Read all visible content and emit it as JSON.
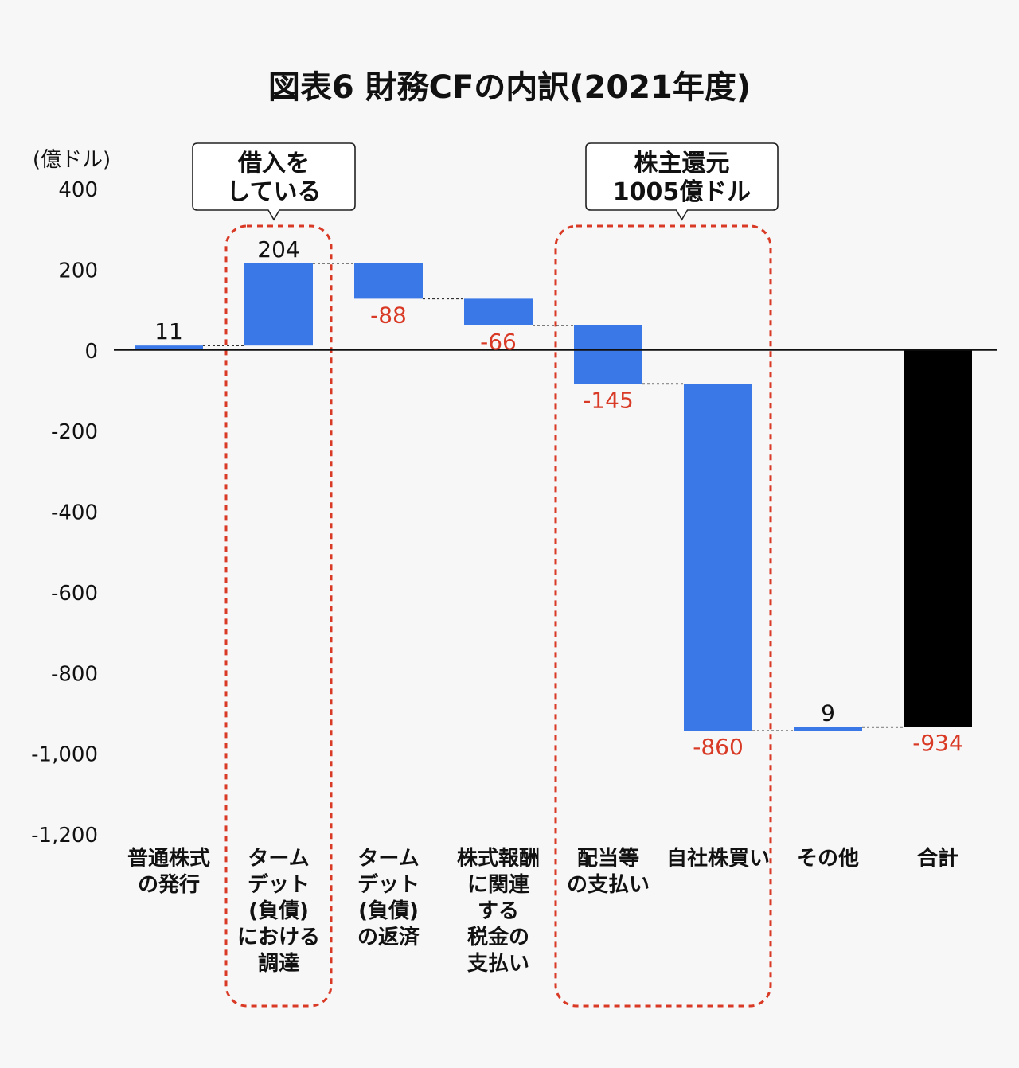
{
  "colors": {
    "background": "#f7f7f7",
    "bar_blue": "#3b78e7",
    "bar_total": "#000000",
    "negative_label": "#d93a26",
    "positive_label": "#111111",
    "highlight_border": "#d93a26",
    "connector": "#333333"
  },
  "chart_data": {
    "type": "bar",
    "subtype": "waterfall",
    "title": "図表6 財務CFの内訳(2021年度)",
    "unit_label": "(億ドル)",
    "xlabel": "",
    "ylabel": "(億ドル)",
    "ylim": [
      -1200,
      400
    ],
    "yticks": [
      400,
      200,
      0,
      -200,
      -400,
      -600,
      -800,
      -1000,
      -1200
    ],
    "ytick_labels": [
      "400",
      "200",
      "0",
      "-200",
      "-400",
      "-600",
      "-800",
      "-1,000",
      "-1,200"
    ],
    "grid": false,
    "categories": [
      [
        "普通株式",
        "の発行"
      ],
      [
        "ターム",
        "デット",
        "(負債)",
        "における",
        "調達"
      ],
      [
        "ターム",
        "デット",
        "(負債)",
        "の返済"
      ],
      [
        "株式報酬",
        "に関連",
        "する",
        "税金の",
        "支払い"
      ],
      [
        "配当等",
        "の支払い"
      ],
      [
        "自社株買い"
      ],
      [
        "その他"
      ],
      [
        "合計"
      ]
    ],
    "values": [
      11,
      204,
      -88,
      -66,
      -145,
      -860,
      9,
      -934
    ],
    "value_labels": [
      "11",
      "204",
      "-88",
      "-66",
      "-145",
      "-860",
      "9",
      "-934"
    ],
    "is_total": [
      false,
      false,
      false,
      false,
      false,
      false,
      false,
      true
    ],
    "callouts": [
      {
        "lines": [
          "借入を",
          "している"
        ],
        "categories": [
          1
        ]
      },
      {
        "lines": [
          "株主還元",
          "1005億ドル"
        ],
        "categories": [
          4,
          5
        ]
      }
    ]
  }
}
